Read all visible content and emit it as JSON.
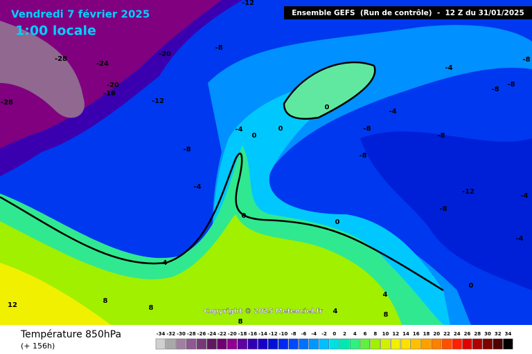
{
  "header": {
    "date": "Vendredi 7 février 2025",
    "time": "1:00 locale",
    "model": "Ensemble GEFS  (Run de contrôle)  -  12 Z du 31/01/2025"
  },
  "map": {
    "contour_labels": [
      -12,
      -20,
      -8,
      -28,
      -24,
      -20,
      -16,
      -28,
      -12,
      -4,
      0,
      0,
      0,
      -8,
      -4,
      0,
      0,
      4,
      8,
      12,
      8,
      4,
      8,
      4,
      8,
      -4,
      -8,
      -8,
      -8,
      -4,
      -8,
      -8,
      -8,
      -8,
      -12,
      -4,
      -4,
      0
    ],
    "copyright": "Copyright © 2025 Meteociel.fr"
  },
  "footer": {
    "title": "Température 850hPa",
    "lead": "(+ 156h)"
  },
  "colorbar": {
    "values": [
      -34,
      -32,
      -30,
      -28,
      -26,
      -24,
      -22,
      -20,
      -18,
      -16,
      -14,
      -12,
      -10,
      -8,
      -6,
      -4,
      -2,
      0,
      2,
      4,
      6,
      8,
      10,
      12,
      14,
      16,
      18,
      20,
      22,
      24,
      26,
      28,
      30,
      32,
      34
    ],
    "colors": [
      "#d0d0d0",
      "#a8a8a8",
      "#a080a0",
      "#905890",
      "#783878",
      "#601860",
      "#700070",
      "#900090",
      "#6000a0",
      "#3000b0",
      "#1800c8",
      "#0010d8",
      "#0028f0",
      "#0048ff",
      "#0070ff",
      "#0098ff",
      "#00c0ff",
      "#00e0e0",
      "#00e8b0",
      "#30f080",
      "#60f040",
      "#a0f000",
      "#d0f000",
      "#f0f000",
      "#ffe000",
      "#ffc000",
      "#ffa000",
      "#ff8000",
      "#ff5000",
      "#ff2000",
      "#e00000",
      "#b00000",
      "#800000",
      "#500000",
      "#000000"
    ]
  }
}
